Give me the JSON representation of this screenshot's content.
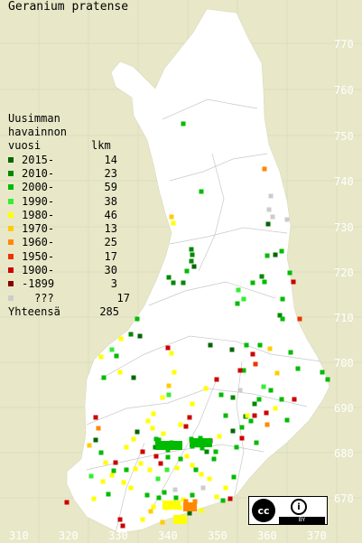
{
  "title": "Geranium pratense",
  "legend": {
    "heading_lines": [
      "Uusimman",
      "havainnon"
    ],
    "col_year": "vuosi",
    "col_count": "lkm",
    "rows": [
      {
        "label": "2015-",
        "count": "14",
        "color": "#006600"
      },
      {
        "label": "2010-",
        "count": "23",
        "color": "#008800"
      },
      {
        "label": "2000-",
        "count": "59",
        "color": "#00bb00"
      },
      {
        "label": "1990-",
        "count": "38",
        "color": "#33ee33"
      },
      {
        "label": "1980-",
        "count": "46",
        "color": "#ffff00"
      },
      {
        "label": "1970-",
        "count": "13",
        "color": "#ffcc00"
      },
      {
        "label": "1960-",
        "count": "25",
        "color": "#ff8800"
      },
      {
        "label": "1950-",
        "count": "17",
        "color": "#ee3300"
      },
      {
        "label": "1900-",
        "count": "30",
        "color": "#cc0000"
      },
      {
        "label": "-1899",
        "count": "3",
        "color": "#880000"
      },
      {
        "label": "???",
        "count": "17",
        "color": "#cccccc"
      }
    ],
    "total_label": "Yhteensä",
    "total_value": "285"
  },
  "map": {
    "land_color": "#ffffff",
    "water_color": "#e8e8c8",
    "grid_color": "#dcdcc0",
    "y_ticks": [
      "770",
      "760",
      "750",
      "740",
      "730",
      "720",
      "710",
      "700",
      "690",
      "680",
      "670"
    ],
    "x_ticks": [
      "310",
      "320",
      "330",
      "340",
      "350",
      "360",
      "370"
    ]
  },
  "license": {
    "cc_symbol": "cc",
    "by_symbol": "i",
    "by_label": "BY"
  }
}
